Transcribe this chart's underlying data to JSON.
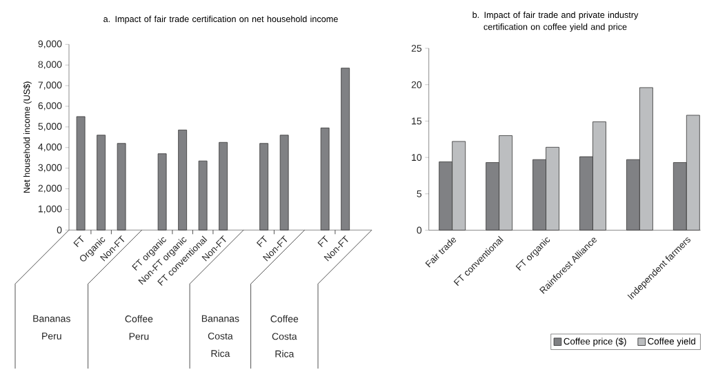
{
  "chart_data": [
    {
      "type": "bar",
      "title": "a. Impact of fair trade certification on net household income",
      "ylabel": "Net household income (US$)",
      "categories": [
        "FT",
        "Organic",
        "Non-FT",
        null,
        "FT organic",
        "Non-FT organic",
        "FT conventional",
        "Non-FT",
        null,
        "FT",
        "Non-FT",
        null,
        "FT",
        "Non-FT"
      ],
      "values": [
        5500,
        4600,
        4200,
        null,
        3700,
        4850,
        3350,
        4250,
        null,
        4200,
        4600,
        null,
        4950,
        7850
      ],
      "color": "#808184",
      "ylim": [
        0,
        9000
      ],
      "yticks": [
        0,
        {
          "value": 1000,
          "label": "1,000"
        },
        {
          "value": 2000,
          "label": "2,000"
        },
        {
          "value": 3000,
          "label": "3,000"
        },
        {
          "value": 4000,
          "label": "4,000"
        },
        {
          "value": 5000,
          "label": "5,000"
        },
        {
          "value": 6000,
          "label": "6,000"
        },
        {
          "value": 7000,
          "label": "7,000"
        },
        {
          "value": 8000,
          "label": "8,000"
        },
        {
          "value": 9000,
          "label": "9,000"
        }
      ],
      "annotations": [
        "Bananas Peru",
        "Coffee Peru",
        "Bananas Costa Rica",
        "Coffee Costa Rica"
      ]
    },
    {
      "type": "bar",
      "title": "b. Impact of fair trade and private industry certification on coffee yield and price",
      "categories": [
        "Fair trade",
        "FT conventional",
        "FT organic",
        "Rainforest Alliance",
        null,
        "Independent farmers"
      ],
      "series": [
        {
          "name": "Coffee price ($)",
          "color": "#808184",
          "values": [
            9.4,
            9.3,
            9.7,
            10.1,
            9.7,
            9.3
          ]
        },
        {
          "name": "Coffee yield",
          "color": "#bcbec0",
          "values": [
            12.2,
            13.0,
            11.4,
            14.9,
            19.6,
            15.8
          ]
        }
      ],
      "ylim": [
        0,
        25
      ],
      "yticks": [
        0,
        5,
        10,
        15,
        20,
        25
      ],
      "legend": "bottom right"
    }
  ]
}
